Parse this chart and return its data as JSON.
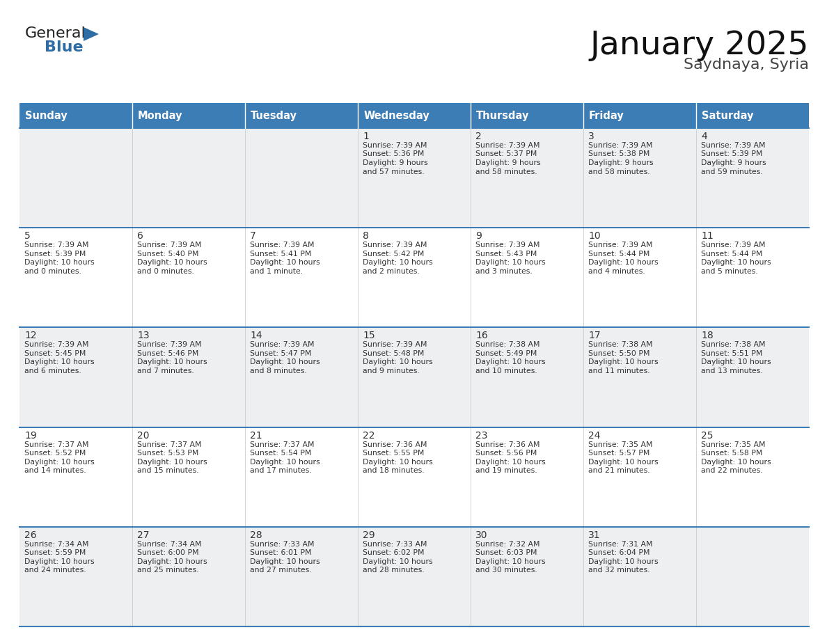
{
  "title": "January 2025",
  "subtitle": "Saydnaya, Syria",
  "days_of_week": [
    "Sunday",
    "Monday",
    "Tuesday",
    "Wednesday",
    "Thursday",
    "Friday",
    "Saturday"
  ],
  "header_bg_color": "#3d7db5",
  "header_text_color": "#ffffff",
  "row_bg_colors": [
    "#eeeff0",
    "#ffffff",
    "#eeeff0",
    "#ffffff",
    "#eeeff0"
  ],
  "row_line_color": "#3d7db5",
  "text_color": "#333333",
  "title_color": "#111111",
  "subtitle_color": "#444444",
  "logo_general_color": "#222222",
  "logo_blue_color": "#2e6da4",
  "logo_triangle_color": "#2e6da4",
  "calendar_data": [
    [
      {
        "day": "",
        "sunrise": "",
        "sunset": "",
        "daylight": ""
      },
      {
        "day": "",
        "sunrise": "",
        "sunset": "",
        "daylight": ""
      },
      {
        "day": "",
        "sunrise": "",
        "sunset": "",
        "daylight": ""
      },
      {
        "day": "1",
        "sunrise": "7:39 AM",
        "sunset": "5:36 PM",
        "daylight": "9 hours and 57 minutes."
      },
      {
        "day": "2",
        "sunrise": "7:39 AM",
        "sunset": "5:37 PM",
        "daylight": "9 hours and 58 minutes."
      },
      {
        "day": "3",
        "sunrise": "7:39 AM",
        "sunset": "5:38 PM",
        "daylight": "9 hours and 58 minutes."
      },
      {
        "day": "4",
        "sunrise": "7:39 AM",
        "sunset": "5:39 PM",
        "daylight": "9 hours and 59 minutes."
      }
    ],
    [
      {
        "day": "5",
        "sunrise": "7:39 AM",
        "sunset": "5:39 PM",
        "daylight": "10 hours and 0 minutes."
      },
      {
        "day": "6",
        "sunrise": "7:39 AM",
        "sunset": "5:40 PM",
        "daylight": "10 hours and 0 minutes."
      },
      {
        "day": "7",
        "sunrise": "7:39 AM",
        "sunset": "5:41 PM",
        "daylight": "10 hours and 1 minute."
      },
      {
        "day": "8",
        "sunrise": "7:39 AM",
        "sunset": "5:42 PM",
        "daylight": "10 hours and 2 minutes."
      },
      {
        "day": "9",
        "sunrise": "7:39 AM",
        "sunset": "5:43 PM",
        "daylight": "10 hours and 3 minutes."
      },
      {
        "day": "10",
        "sunrise": "7:39 AM",
        "sunset": "5:44 PM",
        "daylight": "10 hours and 4 minutes."
      },
      {
        "day": "11",
        "sunrise": "7:39 AM",
        "sunset": "5:44 PM",
        "daylight": "10 hours and 5 minutes."
      }
    ],
    [
      {
        "day": "12",
        "sunrise": "7:39 AM",
        "sunset": "5:45 PM",
        "daylight": "10 hours and 6 minutes."
      },
      {
        "day": "13",
        "sunrise": "7:39 AM",
        "sunset": "5:46 PM",
        "daylight": "10 hours and 7 minutes."
      },
      {
        "day": "14",
        "sunrise": "7:39 AM",
        "sunset": "5:47 PM",
        "daylight": "10 hours and 8 minutes."
      },
      {
        "day": "15",
        "sunrise": "7:39 AM",
        "sunset": "5:48 PM",
        "daylight": "10 hours and 9 minutes."
      },
      {
        "day": "16",
        "sunrise": "7:38 AM",
        "sunset": "5:49 PM",
        "daylight": "10 hours and 10 minutes."
      },
      {
        "day": "17",
        "sunrise": "7:38 AM",
        "sunset": "5:50 PM",
        "daylight": "10 hours and 11 minutes."
      },
      {
        "day": "18",
        "sunrise": "7:38 AM",
        "sunset": "5:51 PM",
        "daylight": "10 hours and 13 minutes."
      }
    ],
    [
      {
        "day": "19",
        "sunrise": "7:37 AM",
        "sunset": "5:52 PM",
        "daylight": "10 hours and 14 minutes."
      },
      {
        "day": "20",
        "sunrise": "7:37 AM",
        "sunset": "5:53 PM",
        "daylight": "10 hours and 15 minutes."
      },
      {
        "day": "21",
        "sunrise": "7:37 AM",
        "sunset": "5:54 PM",
        "daylight": "10 hours and 17 minutes."
      },
      {
        "day": "22",
        "sunrise": "7:36 AM",
        "sunset": "5:55 PM",
        "daylight": "10 hours and 18 minutes."
      },
      {
        "day": "23",
        "sunrise": "7:36 AM",
        "sunset": "5:56 PM",
        "daylight": "10 hours and 19 minutes."
      },
      {
        "day": "24",
        "sunrise": "7:35 AM",
        "sunset": "5:57 PM",
        "daylight": "10 hours and 21 minutes."
      },
      {
        "day": "25",
        "sunrise": "7:35 AM",
        "sunset": "5:58 PM",
        "daylight": "10 hours and 22 minutes."
      }
    ],
    [
      {
        "day": "26",
        "sunrise": "7:34 AM",
        "sunset": "5:59 PM",
        "daylight": "10 hours and 24 minutes."
      },
      {
        "day": "27",
        "sunrise": "7:34 AM",
        "sunset": "6:00 PM",
        "daylight": "10 hours and 25 minutes."
      },
      {
        "day": "28",
        "sunrise": "7:33 AM",
        "sunset": "6:01 PM",
        "daylight": "10 hours and 27 minutes."
      },
      {
        "day": "29",
        "sunrise": "7:33 AM",
        "sunset": "6:02 PM",
        "daylight": "10 hours and 28 minutes."
      },
      {
        "day": "30",
        "sunrise": "7:32 AM",
        "sunset": "6:03 PM",
        "daylight": "10 hours and 30 minutes."
      },
      {
        "day": "31",
        "sunrise": "7:31 AM",
        "sunset": "6:04 PM",
        "daylight": "10 hours and 32 minutes."
      },
      {
        "day": "",
        "sunrise": "",
        "sunset": "",
        "daylight": ""
      }
    ]
  ]
}
